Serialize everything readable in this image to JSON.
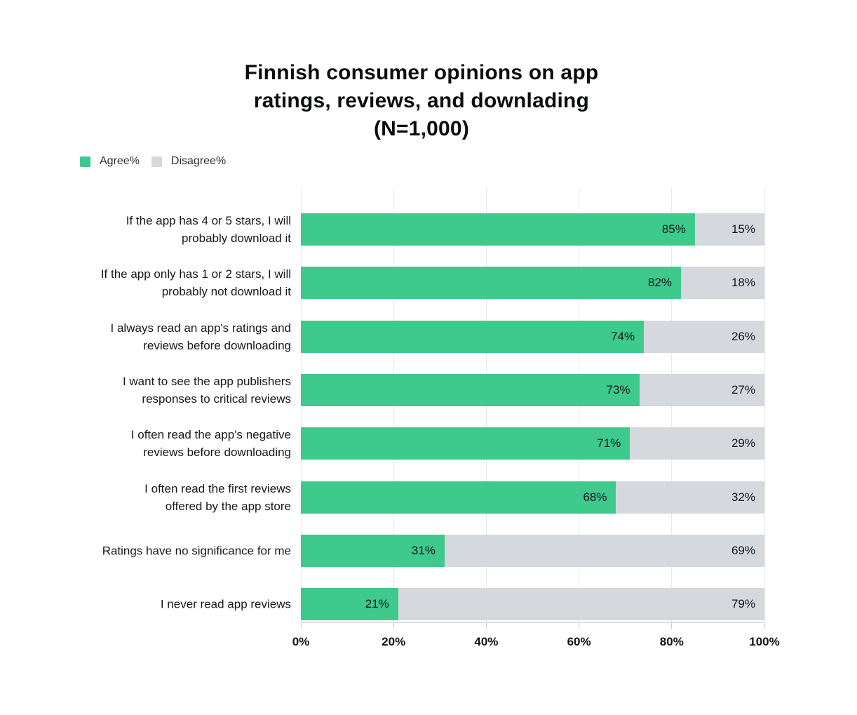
{
  "title": "Finnish consumer opinions on app\nratings, reviews, and downlading\n(N=1,000)",
  "legend": {
    "items": [
      {
        "label": "Agree%",
        "color": "#3EC98D"
      },
      {
        "label": "Disagree%",
        "color": "#D5D9DE"
      }
    ]
  },
  "chart_data": {
    "type": "bar",
    "orientation": "horizontal",
    "stacked": true,
    "title": "Finnish consumer opinions on app ratings, reviews, and downlading (N=1,000)",
    "categories": [
      "If the app has 4 or 5 stars, I will\nprobably download it",
      "If the app only has 1 or 2 stars, I will\nprobably not download it",
      "I always read an app's ratings and\nreviews before downloading",
      "I want to see the app publishers\nresponses to critical reviews",
      "I often read the app's negative\nreviews before downloading",
      "I often read the first reviews\noffered by the app store",
      "Ratings have no significance for me",
      "I never read app reviews"
    ],
    "series": [
      {
        "name": "Agree%",
        "color": "#3EC98D",
        "values": [
          85,
          82,
          74,
          73,
          71,
          68,
          31,
          21
        ]
      },
      {
        "name": "Disagree%",
        "color": "#D5D9DE",
        "values": [
          15,
          18,
          26,
          27,
          29,
          32,
          69,
          79
        ]
      }
    ],
    "value_label_suffix": "%",
    "value_labels": "inside-end",
    "x_ticks": [
      0,
      20,
      40,
      60,
      80,
      100
    ],
    "x_tick_labels": [
      "0%",
      "20%",
      "40%",
      "60%",
      "80%",
      "100%"
    ],
    "xlim": [
      0,
      100
    ],
    "grid": "vertical",
    "legend_position": "top-left"
  },
  "colors": {
    "agree": "#3EC98D",
    "disagree": "#D5D9DE",
    "gridline": "#E7E9EB",
    "axis_line": "#DBDEE1",
    "tick": "#C9CDD1",
    "text": "#16181B",
    "background": "#FFFFFF"
  }
}
